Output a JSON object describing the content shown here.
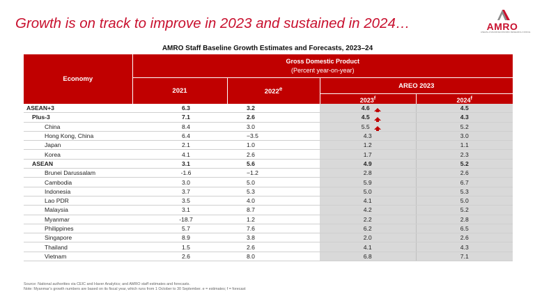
{
  "slide": {
    "title": "Growth is on track to improve in 2023 and sustained in 2024…"
  },
  "logo": {
    "text": "AMRO",
    "tagline": "ASEAN+3 MACROECONOMIC RESEARCH OFFICE",
    "brand_color": "#c8102e"
  },
  "table": {
    "title": "AMRO Staff Baseline Growth Estimates and Forecasts, 2023–24",
    "header": {
      "economy": "Economy",
      "gdp": "Gross Domestic Product",
      "gdp_unit": "(Percent year-on-year)",
      "y2021": "2021",
      "y2022": "2022",
      "y2022_sup": "e",
      "areo": "AREO 2023",
      "y2023": "2023",
      "y2023_sup": "f",
      "y2024": "2024",
      "y2024_sup": "f"
    },
    "header_color": "#c00000",
    "forecast_shade": "#d9d9d9",
    "rows": [
      {
        "economy": "ASEAN+3",
        "y2021": "6.3",
        "y2022": "3.2",
        "y2023": "4.6",
        "y2024": "4.5",
        "up_arrow": true
      },
      {
        "economy": "Plus-3",
        "y2021": "7.1",
        "y2022": "2.6",
        "y2023": "4.5",
        "y2024": "4.3",
        "up_arrow": true
      },
      {
        "economy": "China",
        "y2021": "8.4",
        "y2022": "3.0",
        "y2023": "5.5",
        "y2024": "5.2",
        "up_arrow": true
      },
      {
        "economy": "Hong Kong, China",
        "y2021": "6.4",
        "y2022": "−3.5",
        "y2023": "4.3",
        "y2024": "3.0"
      },
      {
        "economy": "Japan",
        "y2021": "2.1",
        "y2022": "1.0",
        "y2023": "1.2",
        "y2024": "1.1"
      },
      {
        "economy": "Korea",
        "y2021": "4.1",
        "y2022": "2.6",
        "y2023": "1.7",
        "y2024": "2.3"
      },
      {
        "economy": "ASEAN",
        "y2021": "3.1",
        "y2022": "5.6",
        "y2023": "4.9",
        "y2024": "5.2"
      },
      {
        "economy": "Brunei Darussalam",
        "y2021": "-1.6",
        "y2022": "−1.2",
        "y2023": "2.8",
        "y2024": "2.6"
      },
      {
        "economy": "Cambodia",
        "y2021": "3.0",
        "y2022": "5.0",
        "y2023": "5.9",
        "y2024": "6.7"
      },
      {
        "economy": "Indonesia",
        "y2021": "3.7",
        "y2022": "5.3",
        "y2023": "5.0",
        "y2024": "5.3"
      },
      {
        "economy": "Lao PDR",
        "y2021": "3.5",
        "y2022": "4.0",
        "y2023": "4.1",
        "y2024": "5.0"
      },
      {
        "economy": "Malaysia",
        "y2021": "3.1",
        "y2022": "8.7",
        "y2023": "4.2",
        "y2024": "5.2"
      },
      {
        "economy": "Myanmar",
        "y2021": "-18.7",
        "y2022": "1.2",
        "y2023": "2.2",
        "y2024": "2.8"
      },
      {
        "economy": "Philippines",
        "y2021": "5.7",
        "y2022": "7.6",
        "y2023": "6.2",
        "y2024": "6.5"
      },
      {
        "economy": "Singapore",
        "y2021": "8.9",
        "y2022": "3.8",
        "y2023": "2.0",
        "y2024": "2.6"
      },
      {
        "economy": "Thailand",
        "y2021": "1.5",
        "y2022": "2.6",
        "y2023": "4.1",
        "y2024": "4.3"
      },
      {
        "economy": "Vietnam",
        "y2021": "2.6",
        "y2022": "8.0",
        "y2023": "6.8",
        "y2024": "7.1"
      }
    ]
  },
  "footnotes": {
    "source": "Source: National authorities via CEIC and Haver Analytics; and AMRO staff estimates and forecasts.",
    "note": "Note: Myanmar’s growth numbers are based on its fiscal year, which runs from 1 October to 30 September. e = estimates; f = forecast"
  }
}
